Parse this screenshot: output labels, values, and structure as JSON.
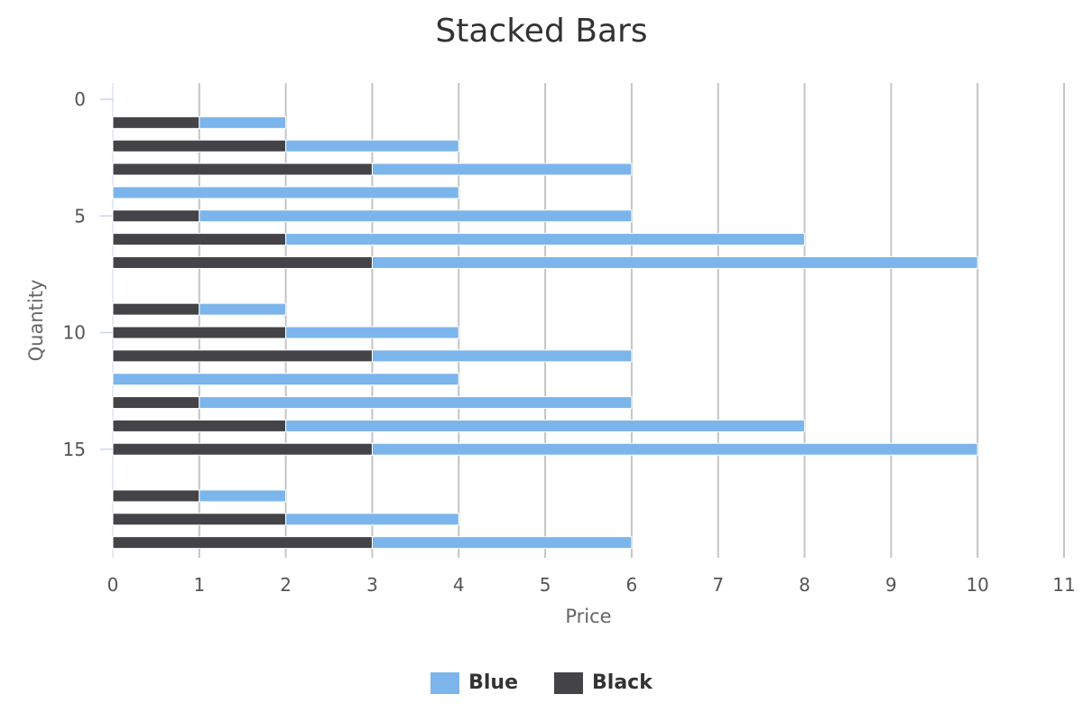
{
  "chart_data": {
    "type": "bar",
    "orientation": "horizontal",
    "stacked": true,
    "title": "Stacked Bars",
    "xlabel": "Price",
    "ylabel": "Quantity",
    "xlim": [
      0,
      11
    ],
    "ylim": [
      19,
      0
    ],
    "x_ticks": [
      0,
      1,
      2,
      3,
      4,
      5,
      6,
      7,
      8,
      9,
      10,
      11
    ],
    "y_ticks": [
      0,
      5,
      10,
      15
    ],
    "grid": true,
    "legend_placement": "bottom",
    "y": [
      1,
      2,
      3,
      4,
      5,
      6,
      7,
      9,
      10,
      11,
      12,
      13,
      14,
      15,
      17,
      18,
      19
    ],
    "series": [
      {
        "name": "Black",
        "color": "#434348",
        "values": [
          1,
          2,
          3,
          0,
          1,
          2,
          3,
          1,
          2,
          3,
          0,
          1,
          2,
          3,
          1,
          2,
          3
        ]
      },
      {
        "name": "Blue",
        "color": "#7cb5ec",
        "values": [
          1,
          2,
          3,
          4,
          5,
          6,
          7,
          1,
          2,
          3,
          4,
          5,
          6,
          7,
          1,
          2,
          3
        ]
      }
    ],
    "legend": [
      {
        "name": "Blue",
        "color": "#7cb5ec"
      },
      {
        "name": "Black",
        "color": "#434348"
      }
    ]
  }
}
